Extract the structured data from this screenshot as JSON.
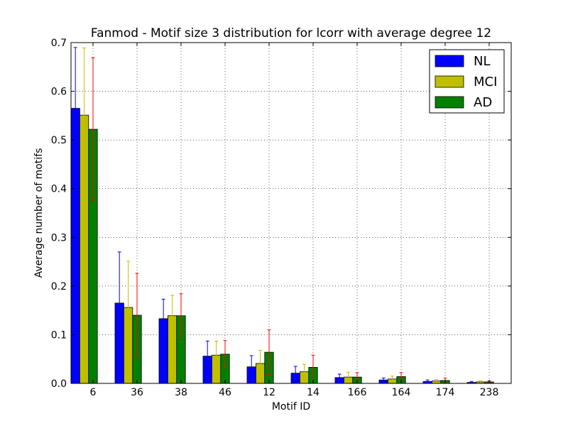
{
  "chart_data": {
    "type": "bar",
    "title": "Fanmod - Motif size 3 distribution for lcorr with average degree 12",
    "xlabel": "Motif ID",
    "ylabel": "Average number of motifs",
    "ylim": [
      0,
      0.7
    ],
    "yticks": [
      "0.0",
      "0.1",
      "0.2",
      "0.3",
      "0.4",
      "0.5",
      "0.6",
      "0.7"
    ],
    "grid": true,
    "legend_position": "top-right",
    "categories": [
      "6",
      "36",
      "38",
      "46",
      "12",
      "14",
      "166",
      "164",
      "174",
      "238"
    ],
    "series": [
      {
        "name": "NL",
        "color": "#0000ff",
        "values": [
          0.565,
          0.165,
          0.133,
          0.056,
          0.034,
          0.021,
          0.012,
          0.007,
          0.004,
          0.002
        ],
        "errors": [
          0.125,
          0.105,
          0.04,
          0.031,
          0.023,
          0.014,
          0.007,
          0.004,
          0.003,
          0.002
        ]
      },
      {
        "name": "MCI",
        "color": "#bfbf00",
        "values": [
          0.551,
          0.156,
          0.139,
          0.058,
          0.041,
          0.024,
          0.013,
          0.009,
          0.005,
          0.003
        ],
        "errors": [
          0.138,
          0.095,
          0.042,
          0.029,
          0.027,
          0.015,
          0.01,
          0.006,
          0.003,
          0.002
        ]
      },
      {
        "name": "AD",
        "color": "#008000",
        "values": [
          0.522,
          0.14,
          0.139,
          0.06,
          0.064,
          0.033,
          0.013,
          0.014,
          0.006,
          0.003
        ],
        "errors": [
          0.147,
          0.086,
          0.045,
          0.028,
          0.046,
          0.025,
          0.009,
          0.008,
          0.005,
          0.002
        ]
      }
    ],
    "error_colors": [
      "#0000ff",
      "#bfbf00",
      "#ff0000"
    ]
  }
}
